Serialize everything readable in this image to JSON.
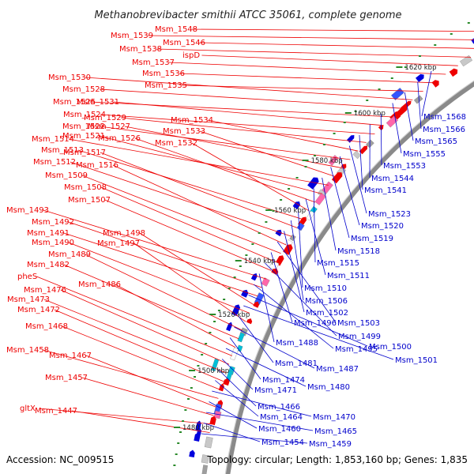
{
  "title": "Methanobrevibacter smithii ATCC 35061, complete genome",
  "footer": {
    "accession": "Accession: NC_009515",
    "summary": "Topology: circular; Length: 1,853,160 bp; Genes: 1,835"
  },
  "colors": {
    "left_label": "#ee0000",
    "right_label": "#0000cc",
    "backbone": "#8a8a8a",
    "forward_arrow": "#ee0000",
    "reverse_arrow": "#0000dd",
    "tick_dot": "#2a8a2a"
  },
  "scale_ticks": [
    "1620 kbp",
    "1600 kbp",
    "1580 kbp",
    "1560 kbp",
    "1540 kbp",
    "1520 kbp",
    "1500 kbp",
    "1480 kbp"
  ],
  "left_labels": [
    "Msm_1548",
    "Msm_1539",
    "Msm_1546",
    "Msm_1538",
    "ispD",
    "Msm_1537",
    "Msm_1536",
    "Msm_1535",
    "Msm_1530",
    "Msm_1528",
    "Msm_1525",
    "Msm_1531",
    "Msm_1524",
    "Msm_1529",
    "Msm_1534",
    "Msm_1522",
    "Msm_1527",
    "Msm_1533",
    "Msm_1514",
    "Msm_1521",
    "Msm_1526",
    "Msm_1532",
    "Msm_1513",
    "Msm_1517",
    "Msm_1512",
    "Msm_1516",
    "Msm_1509",
    "Msm_1508",
    "Msm_1507",
    "Msm_1493",
    "Msm_1492",
    "Msm_1491",
    "Msm_1498",
    "Msm_1490",
    "Msm_1497",
    "Msm_1489",
    "Msm_1482",
    "Msm_1486",
    "pheS",
    "Msm_1476",
    "Msm_1473",
    "Msm_1472",
    "Msm_1468",
    "Msm_1458",
    "Msm_1467",
    "Msm_1457",
    "gltX",
    "Msm_1447"
  ],
  "right_labels": [
    "Msm_1568",
    "Msm_1566",
    "Msm_1565",
    "Msm_1555",
    "Msm_1553",
    "Msm_1544",
    "Msm_1541",
    "Msm_1523",
    "Msm_1520",
    "Msm_1519",
    "Msm_1518",
    "Msm_1515",
    "Msm_1511",
    "Msm_1510",
    "Msm_1506",
    "Msm_1502",
    "Msm_1503",
    "Msm_1496",
    "Msm_1499",
    "Msm_1488",
    "Msm_1495",
    "Msm_1500",
    "Msm_1501",
    "Msm_1481",
    "Msm_1487",
    "Msm_1474",
    "Msm_1480",
    "Msm_1471",
    "Msm_1466",
    "Msm_1464",
    "Msm_1470",
    "Msm_1460",
    "Msm_1465",
    "Msm_1454",
    "Msm_1459"
  ]
}
